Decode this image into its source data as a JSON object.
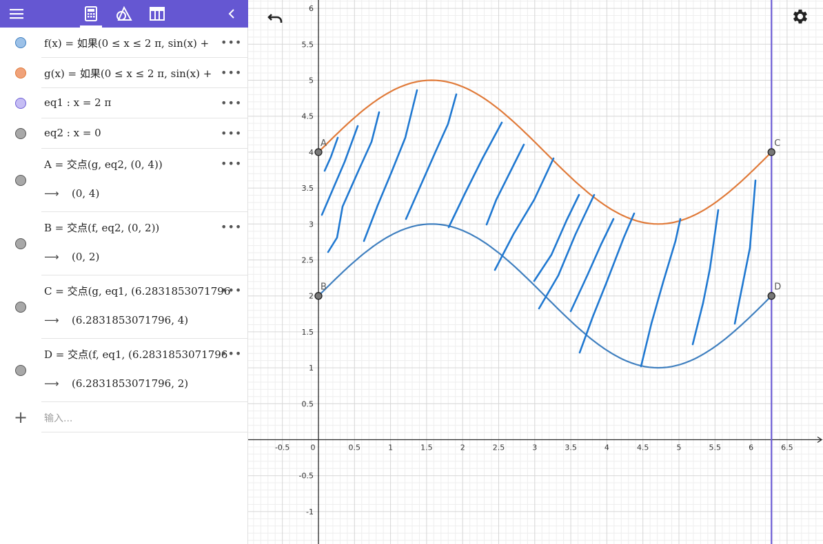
{
  "toolbar": {
    "icons": [
      "menu-icon",
      "calculator-icon",
      "geometry-tools-icon",
      "table-icon",
      "collapse-chevron-icon"
    ],
    "accent": "#6557d2"
  },
  "algebra": {
    "rows": [
      {
        "id": "f",
        "expr": "f(x)  =  如果(0 ≤ x ≤ 2 π,  sin(x) +",
        "color": "#9cc1e8"
      },
      {
        "id": "g",
        "expr": "g(x)  =  如果(0 ≤ x ≤ 2 π,  sin(x) +",
        "color": "#f0a27a"
      },
      {
        "id": "eq1",
        "expr": "eq1 :  x  =  2 π",
        "color": "#c5bdf4"
      },
      {
        "id": "eq2",
        "expr": "eq2 :  x  =  0",
        "color": "#a8a8a8"
      },
      {
        "id": "A",
        "expr": "A  =  交点(g, eq2, (0, 4))",
        "result": "(0, 4)",
        "color": "#a8a8a8"
      },
      {
        "id": "B",
        "expr": "B  =  交点(f, eq2, (0, 2))",
        "result": "(0, 2)",
        "color": "#a8a8a8"
      },
      {
        "id": "C",
        "expr": "C  =  交点(g, eq1, (6.2831853071796",
        "result": "(6.2831853071796, 4)",
        "color": "#a8a8a8"
      },
      {
        "id": "D",
        "expr": "D  =  交点(f, eq1, (6.2831853071796",
        "result": "(6.2831853071796, 2)",
        "color": "#a8a8a8"
      }
    ],
    "more_label": "•••",
    "arrow": "⟶",
    "add_label": "+",
    "input_placeholder": "输入..."
  },
  "graph": {
    "x_ticks": [
      "-0.5",
      "0",
      "0.5",
      "1",
      "1.5",
      "2",
      "2.5",
      "3",
      "3.5",
      "4",
      "4.5",
      "5",
      "5.5",
      "6",
      "6.5"
    ],
    "y_ticks": [
      "-1",
      "-0.5",
      "0.5",
      "1",
      "1.5",
      "2",
      "2.5",
      "3",
      "3.5",
      "4",
      "4.5",
      "5",
      "5.5",
      "6"
    ],
    "x_range": [
      -1.0,
      7.0
    ],
    "y_range": [
      -1.45,
      6.1
    ],
    "vertical_line_x": 6.2831853071796,
    "points": [
      {
        "label": "A",
        "x": 0,
        "y": 4
      },
      {
        "label": "B",
        "x": 0,
        "y": 2
      },
      {
        "label": "C",
        "x": 6.2831853071796,
        "y": 4
      },
      {
        "label": "D",
        "x": 6.2831853071796,
        "y": 2
      }
    ],
    "curves": [
      {
        "name": "f",
        "formula": "sin(x)+2",
        "color": "#3f7fbf"
      },
      {
        "name": "g",
        "formula": "sin(x)+4",
        "color": "#e07a39"
      }
    ],
    "vline_color": "#6f5fd6",
    "hatch_color": "#1f78d1"
  }
}
